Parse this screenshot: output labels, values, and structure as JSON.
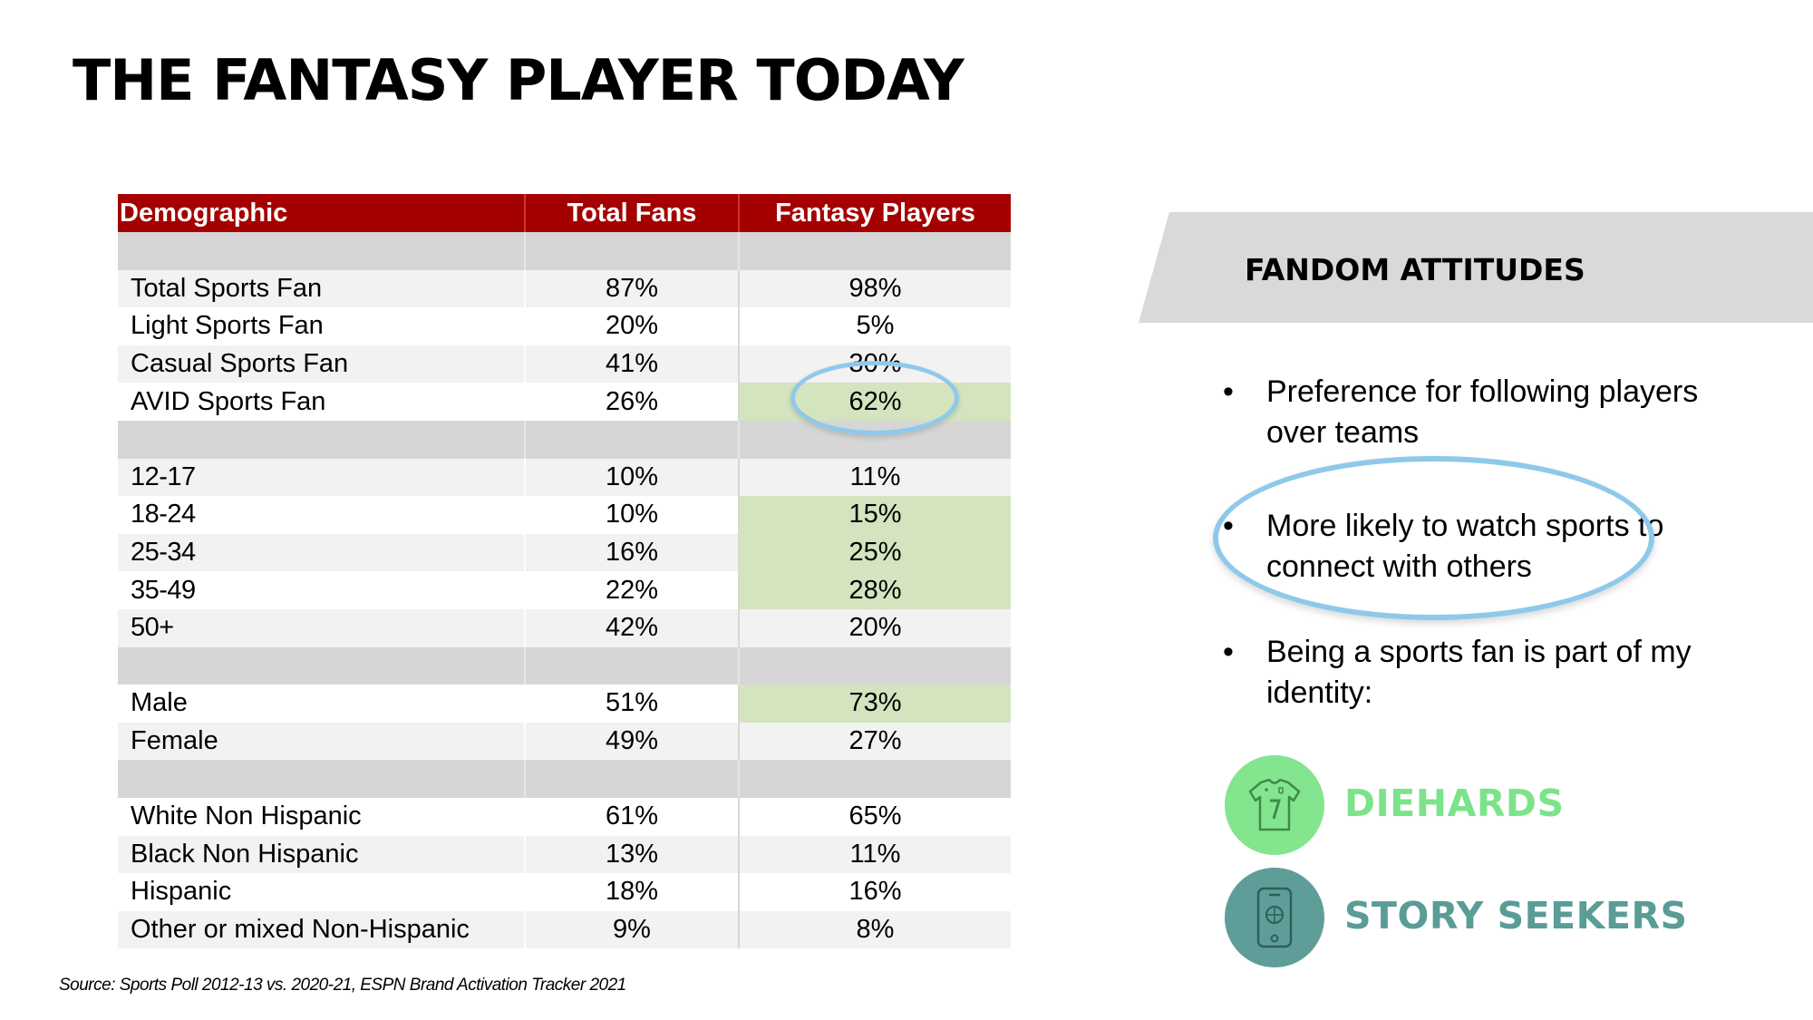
{
  "title": "THE FANTASY PLAYER TODAY",
  "table": {
    "headers": [
      "Demographic",
      "Total Fans",
      "Fantasy Players"
    ],
    "fan_type": [
      {
        "label": "Total Sports Fan",
        "total": "87%",
        "fantasy": "98%"
      },
      {
        "label": "Light Sports Fan",
        "total": "20%",
        "fantasy": "5%"
      },
      {
        "label": "Casual Sports Fan",
        "total": "41%",
        "fantasy": "30%"
      },
      {
        "label": "AVID Sports Fan",
        "total": "26%",
        "fantasy": "62%"
      }
    ],
    "age": [
      {
        "label": "12-17",
        "total": "10%",
        "fantasy": "11%"
      },
      {
        "label": "18-24",
        "total": "10%",
        "fantasy": "15%"
      },
      {
        "label": "25-34",
        "total": "16%",
        "fantasy": "25%"
      },
      {
        "label": "35-49",
        "total": "22%",
        "fantasy": "28%"
      },
      {
        "label": "50+",
        "total": "42%",
        "fantasy": "20%"
      }
    ],
    "gender": [
      {
        "label": "Male",
        "total": "51%",
        "fantasy": "73%"
      },
      {
        "label": "Female",
        "total": "49%",
        "fantasy": "27%"
      }
    ],
    "ethnicity": [
      {
        "label": "White Non Hispanic",
        "total": "61%",
        "fantasy": "65%"
      },
      {
        "label": "Black Non Hispanic",
        "total": "13%",
        "fantasy": "11%"
      },
      {
        "label": "Hispanic",
        "total": "18%",
        "fantasy": "16%"
      },
      {
        "label": "Other or mixed Non-Hispanic",
        "total": "9%",
        "fantasy": "8%"
      }
    ]
  },
  "panel": {
    "heading": "FANDOM ATTITUDES",
    "bullet_char": "•",
    "bullets": [
      "Preference for following players over teams",
      "More likely to watch sports to connect with others",
      "Being a sports fan is part of my identity:"
    ],
    "segments": [
      {
        "label": "DIEHARDS",
        "icon": "jersey-icon",
        "color": "#7de38a",
        "circle": "#84e58f"
      },
      {
        "label": "STORY SEEKERS",
        "icon": "phone-basketball-icon",
        "color": "#5a9c96",
        "circle": "#5f9e98"
      }
    ]
  },
  "source": "Source: Sports Poll 2012-13 vs. 2020-21, ESPN Brand Activation Tracker 2021",
  "colors": {
    "header_red": "#a50000",
    "highlight_green": "#d3e4bf",
    "oval_blue": "#8fc9ea"
  }
}
